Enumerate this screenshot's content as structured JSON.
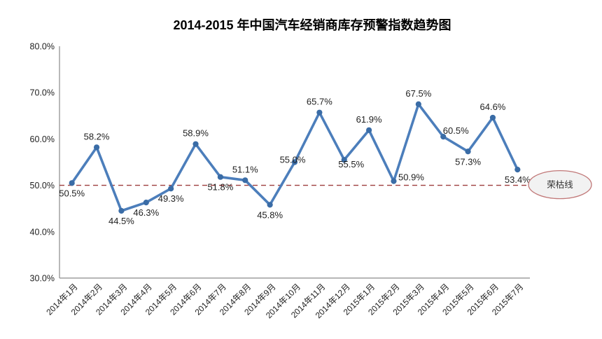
{
  "chart_data": {
    "type": "line",
    "title": "2014-2015 年中国汽车经销商库存预警指数趋势图",
    "categories": [
      "2014年1月",
      "2014年2月",
      "2014年3月",
      "2014年4月",
      "2014年5月",
      "2014年6月",
      "2014年7月",
      "2014年8月",
      "2014年9月",
      "2014年10月",
      "2014年11月",
      "2014年12月",
      "2015年1月",
      "2015年2月",
      "2015年3月",
      "2015年4月",
      "2015年5月",
      "2015年6月",
      "2015年7月"
    ],
    "values": [
      50.5,
      58.2,
      44.5,
      46.3,
      49.3,
      58.9,
      51.8,
      51.1,
      45.8,
      55.0,
      65.7,
      55.5,
      61.9,
      50.9,
      67.5,
      60.5,
      57.3,
      64.6,
      53.4
    ],
    "data_labels": [
      {
        "text": "50.5%",
        "position": "below"
      },
      {
        "text": "58.2%",
        "position": "above"
      },
      {
        "text": "44.5%",
        "position": "below"
      },
      {
        "text": "46.3%",
        "position": "below"
      },
      {
        "text": "49.3%",
        "position": "below"
      },
      {
        "text": "58.9%",
        "position": "above"
      },
      {
        "text": "51.8%",
        "position": "below"
      },
      {
        "text": "51.1%",
        "position": "above"
      },
      {
        "text": "45.8%",
        "position": "below"
      },
      {
        "text": "55.0%",
        "position": "on-left"
      },
      {
        "text": "65.7%",
        "position": "above"
      },
      {
        "text": "55.5%",
        "position": "below-right"
      },
      {
        "text": "61.9%",
        "position": "above"
      },
      {
        "text": "50.9%",
        "position": "right"
      },
      {
        "text": "67.5%",
        "position": "above"
      },
      {
        "text": "60.5%",
        "position": "above-right"
      },
      {
        "text": "57.3%",
        "position": "below"
      },
      {
        "text": "64.6%",
        "position": "above"
      },
      {
        "text": "53.4%",
        "position": "below"
      }
    ],
    "xlabel": "",
    "ylabel": "",
    "ylim": [
      30,
      80
    ],
    "y_ticks": [
      {
        "value": 80,
        "label": "80.0%"
      },
      {
        "value": 70,
        "label": "70.0%"
      },
      {
        "value": 60,
        "label": "60.0%"
      },
      {
        "value": 50,
        "label": "50.0%"
      },
      {
        "value": 40,
        "label": "40.0%"
      },
      {
        "value": 30,
        "label": "30.0%"
      }
    ],
    "grid": false,
    "legend": "none",
    "reference_line": {
      "value": 50,
      "style": "dashed",
      "color": "#9E3D3D"
    },
    "annotation": {
      "label": "荣枯线",
      "fill": "#F2F2F2",
      "border": "#C17878"
    },
    "colors": {
      "line": "#4C7EBB",
      "marker": "#3A6CA6",
      "axis": "#8A8A8A",
      "text": "#1F1F1F"
    }
  }
}
